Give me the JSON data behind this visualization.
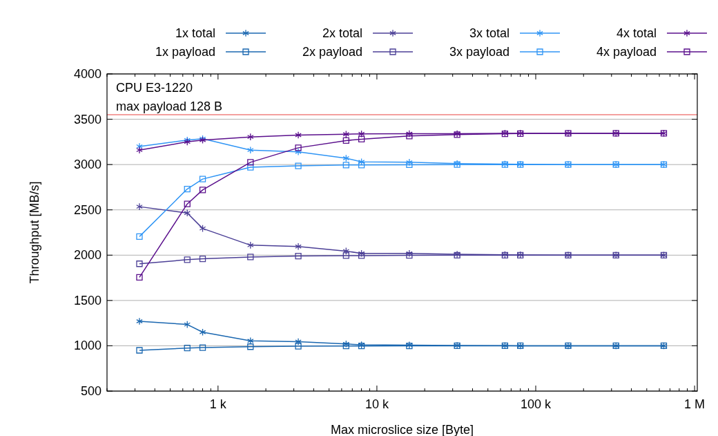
{
  "chart_data": {
    "type": "line",
    "xlabel": "Max microslice size [Byte]",
    "ylabel": "Throughput [MB/s]",
    "annotations": [
      "CPU E3-1220",
      "max payload 128 B"
    ],
    "log": "x",
    "grid": "y",
    "legend": "top",
    "line_style": "solid",
    "xlim": [
      200,
      1040000
    ],
    "xticks": [
      {
        "value": 200,
        "label": null
      },
      {
        "value": 300,
        "label": null
      },
      {
        "value": 400,
        "label": null
      },
      {
        "value": 500,
        "label": null
      },
      {
        "value": 600,
        "label": null
      },
      {
        "value": 700,
        "label": null
      },
      {
        "value": 800,
        "label": null
      },
      {
        "value": 900,
        "label": null
      },
      {
        "value": 1000,
        "label": "1 k"
      },
      {
        "value": 2000,
        "label": null
      },
      {
        "value": 3000,
        "label": null
      },
      {
        "value": 4000,
        "label": null
      },
      {
        "value": 5000,
        "label": null
      },
      {
        "value": 6000,
        "label": null
      },
      {
        "value": 7000,
        "label": null
      },
      {
        "value": 8000,
        "label": null
      },
      {
        "value": 9000,
        "label": null
      },
      {
        "value": 10000,
        "label": "10 k"
      },
      {
        "value": 20000,
        "label": null
      },
      {
        "value": 30000,
        "label": null
      },
      {
        "value": 40000,
        "label": null
      },
      {
        "value": 50000,
        "label": null
      },
      {
        "value": 60000,
        "label": null
      },
      {
        "value": 70000,
        "label": null
      },
      {
        "value": 80000,
        "label": null
      },
      {
        "value": 90000,
        "label": null
      },
      {
        "value": 100000,
        "label": "100 k"
      },
      {
        "value": 200000,
        "label": null
      },
      {
        "value": 300000,
        "label": null
      },
      {
        "value": 400000,
        "label": null
      },
      {
        "value": 500000,
        "label": null
      },
      {
        "value": 600000,
        "label": null
      },
      {
        "value": 700000,
        "label": null
      },
      {
        "value": 800000,
        "label": null
      },
      {
        "value": 900000,
        "label": null
      },
      {
        "value": 1000000,
        "label": "1 M"
      }
    ],
    "ylim": [
      500,
      4000
    ],
    "yticks": [
      500,
      1000,
      1500,
      2000,
      2500,
      3000,
      3500,
      4000
    ],
    "ref_lines": [
      {
        "axis": "y",
        "value": 3550,
        "color": "#e8403f"
      }
    ],
    "x": [
      320,
      640,
      800,
      1600,
      3200,
      6400,
      8000,
      16000,
      32000,
      64000,
      80000,
      160000,
      320000,
      640000
    ],
    "series": [
      {
        "name": "1x total",
        "color": "#1a67b0",
        "marker": "cross",
        "values": [
          1270,
          1235,
          1150,
          1055,
          1045,
          1020,
          1010,
          1008,
          1003,
          1001,
          1000,
          1000,
          1000,
          1000
        ]
      },
      {
        "name": "1x payload",
        "color": "#1a67b0",
        "marker": "square",
        "values": [
          950,
          975,
          980,
          990,
          995,
          998,
          998,
          999,
          1000,
          1000,
          1000,
          1000,
          1000,
          1000
        ]
      },
      {
        "name": "2x total",
        "color": "#4b3f96",
        "marker": "cross",
        "values": [
          2535,
          2465,
          2295,
          2110,
          2095,
          2045,
          2020,
          2020,
          2010,
          2005,
          2003,
          2000,
          2000,
          2000
        ]
      },
      {
        "name": "2x payload",
        "color": "#4b3f96",
        "marker": "square",
        "values": [
          1905,
          1950,
          1960,
          1980,
          1990,
          1995,
          1995,
          1998,
          2000,
          2000,
          2000,
          2000,
          2000,
          2000
        ]
      },
      {
        "name": "3x total",
        "color": "#2f95f5",
        "marker": "cross",
        "values": [
          3200,
          3270,
          3285,
          3160,
          3140,
          3070,
          3030,
          3025,
          3010,
          3005,
          3003,
          3000,
          3000,
          3000
        ]
      },
      {
        "name": "3x payload",
        "color": "#2f95f5",
        "marker": "square",
        "values": [
          2205,
          2730,
          2840,
          2970,
          2985,
          2995,
          2995,
          2998,
          3000,
          3000,
          3000,
          3000,
          3000,
          3000
        ]
      },
      {
        "name": "4x total",
        "color": "#5a0f8c",
        "marker": "cross",
        "values": [
          3160,
          3250,
          3270,
          3305,
          3325,
          3335,
          3338,
          3340,
          3340,
          3345,
          3345,
          3345,
          3345,
          3345
        ]
      },
      {
        "name": "4x payload",
        "color": "#5a0f8c",
        "marker": "square",
        "values": [
          1755,
          2565,
          2720,
          3025,
          3185,
          3265,
          3280,
          3315,
          3330,
          3340,
          3342,
          3345,
          3345,
          3345
        ]
      }
    ]
  }
}
